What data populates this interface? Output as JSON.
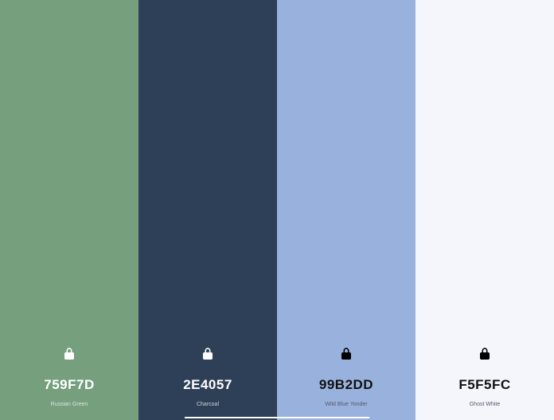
{
  "swatches": [
    {
      "hex": "759F7D",
      "name": "Russian Green",
      "color": "#759F7D",
      "tone": "dark",
      "lock_icon": "lock-icon"
    },
    {
      "hex": "2E4057",
      "name": "Charcoal",
      "color": "#2E4057",
      "tone": "dark",
      "lock_icon": "lock-icon"
    },
    {
      "hex": "99B2DD",
      "name": "Wild Blue Yonder",
      "color": "#99B2DD",
      "tone": "light",
      "lock_icon": "lock-icon"
    },
    {
      "hex": "F5F5FC",
      "name": "Ghost White",
      "color": "#F5F5FC",
      "tone": "light",
      "lock_icon": "lock-icon"
    }
  ]
}
